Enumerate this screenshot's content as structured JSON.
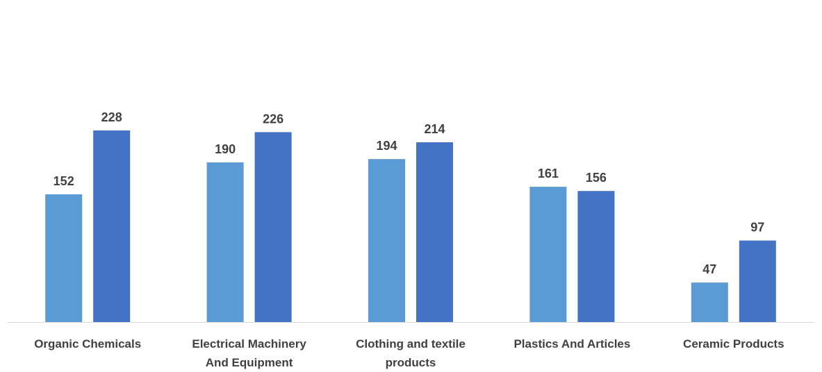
{
  "chart_data": {
    "type": "bar",
    "title": "",
    "xlabel": "",
    "ylabel": "",
    "categories": [
      [
        "Organic Chemicals"
      ],
      [
        "Electrical Machinery",
        "And Equipment"
      ],
      [
        "Clothing and textile",
        "products"
      ],
      [
        "Plastics And Articles"
      ],
      [
        "Ceramic Products"
      ]
    ],
    "series": [
      {
        "values": [
          152,
          190,
          194,
          161,
          47
        ],
        "color": "#5b9bd5"
      },
      {
        "values": [
          228,
          226,
          214,
          156,
          97
        ],
        "color": "#4472c4"
      }
    ],
    "ylim": [
      0,
      250
    ],
    "grid": false,
    "legend": "none",
    "data_labels": true,
    "axis_color": "#d9d9d9"
  }
}
